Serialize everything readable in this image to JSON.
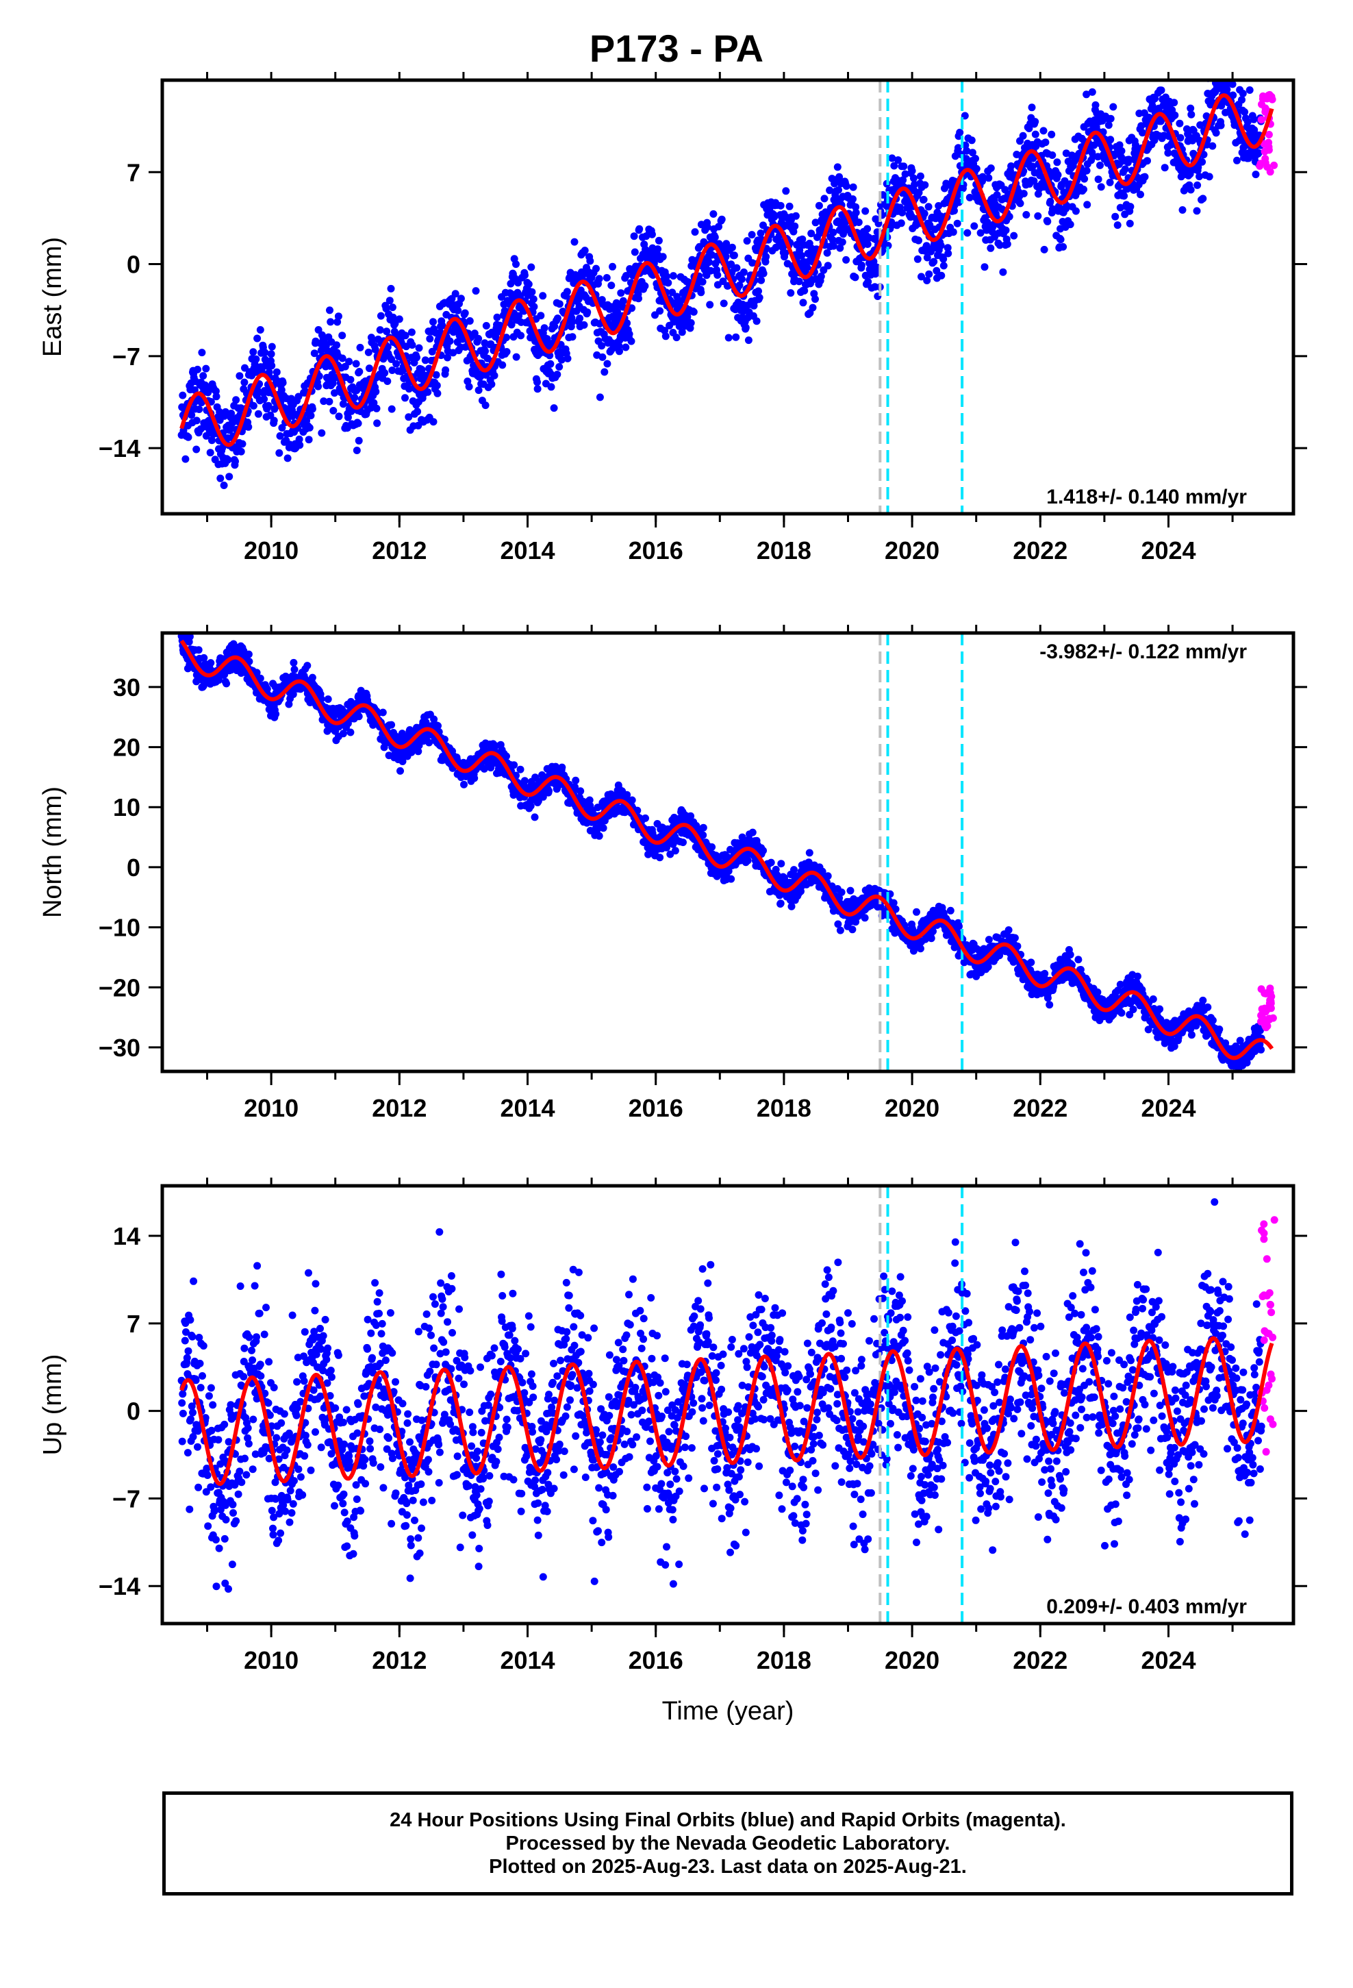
{
  "title": "P173 - PA",
  "footer": {
    "line1": "24 Hour Positions Using Final Orbits (blue) and Rapid Orbits (magenta).",
    "line2": "Processed by the Nevada Geodetic Laboratory.",
    "line3": "Plotted on 2025-Aug-23. Last data on 2025-Aug-21."
  },
  "colors": {
    "final_orbits": "#0000ff",
    "rapid_orbits": "#ff00ff",
    "model": "#ff0000",
    "equipment_change": "#bfbfbf",
    "event_line": "#00e5ff"
  },
  "chart_data": [
    {
      "type": "scatter",
      "ylabel": "East (mm)",
      "xlabel": "",
      "xlim": [
        2008.3,
        2025.95
      ],
      "ylim": [
        -19,
        14
      ],
      "xticks": [
        2010,
        2012,
        2014,
        2016,
        2018,
        2020,
        2022,
        2024
      ],
      "yticks": [
        -14,
        -7,
        0,
        7
      ],
      "rate_label": "1.418+/- 0.140 mm/yr",
      "rate_position": "bottom-right",
      "vertical_lines": [
        {
          "x": 2019.5,
          "kind": "equipment_change"
        },
        {
          "x": 2019.62,
          "kind": "event"
        },
        {
          "x": 2020.78,
          "kind": "event"
        }
      ],
      "model": {
        "start": 2008.6,
        "end": 2025.62,
        "offset_at_2017": -0.6,
        "rate": 1.418,
        "amplitude": 2.3,
        "phase_peak": 0.85
      },
      "final_orbits": {
        "start": 2008.6,
        "end": 2025.45,
        "scatter": 1.6
      },
      "rapid_orbits": {
        "start": 2025.45,
        "end": 2025.63,
        "range": [
          7,
          13
        ]
      }
    },
    {
      "type": "scatter",
      "ylabel": "North (mm)",
      "xlabel": "",
      "xlim": [
        2008.3,
        2025.95
      ],
      "ylim": [
        -34,
        39
      ],
      "xticks": [
        2010,
        2012,
        2014,
        2016,
        2018,
        2020,
        2022,
        2024
      ],
      "yticks": [
        -30,
        -20,
        -10,
        0,
        10,
        20,
        30
      ],
      "rate_label": "-3.982+/- 0.122 mm/yr",
      "rate_position": "top-right",
      "vertical_lines": [
        {
          "x": 2019.5,
          "kind": "equipment_change"
        },
        {
          "x": 2019.62,
          "kind": "event"
        },
        {
          "x": 2020.78,
          "kind": "event"
        }
      ],
      "model": {
        "start": 2008.6,
        "end": 2025.62,
        "offset_at_2017": 2.5,
        "rate": -3.982,
        "amplitude": 2.4,
        "phase_peak": 0.48
      },
      "final_orbits": {
        "start": 2008.6,
        "end": 2025.45,
        "scatter": 1.2
      },
      "rapid_orbits": {
        "start": 2025.45,
        "end": 2025.63,
        "range": [
          -27,
          -20
        ]
      }
    },
    {
      "type": "scatter",
      "ylabel": "Up (mm)",
      "xlabel": "Time (year)",
      "xlim": [
        2008.3,
        2025.95
      ],
      "ylim": [
        -17,
        18
      ],
      "xticks": [
        2010,
        2012,
        2014,
        2016,
        2018,
        2020,
        2022,
        2024
      ],
      "yticks": [
        -14,
        -7,
        0,
        7,
        14
      ],
      "rate_label": "0.209+/- 0.403 mm/yr",
      "rate_position": "bottom-right",
      "vertical_lines": [
        {
          "x": 2019.5,
          "kind": "equipment_change"
        },
        {
          "x": 2019.62,
          "kind": "event"
        },
        {
          "x": 2020.78,
          "kind": "event"
        }
      ],
      "model": {
        "start": 2008.6,
        "end": 2025.62,
        "offset_at_2017": 0,
        "rate": 0.209,
        "amplitude": 4.2,
        "phase_peak": 0.7
      },
      "final_orbits": {
        "start": 2008.6,
        "end": 2025.45,
        "scatter": 3.6
      },
      "rapid_orbits": {
        "start": 2025.45,
        "end": 2025.63,
        "range": [
          -4,
          16
        ]
      }
    }
  ]
}
